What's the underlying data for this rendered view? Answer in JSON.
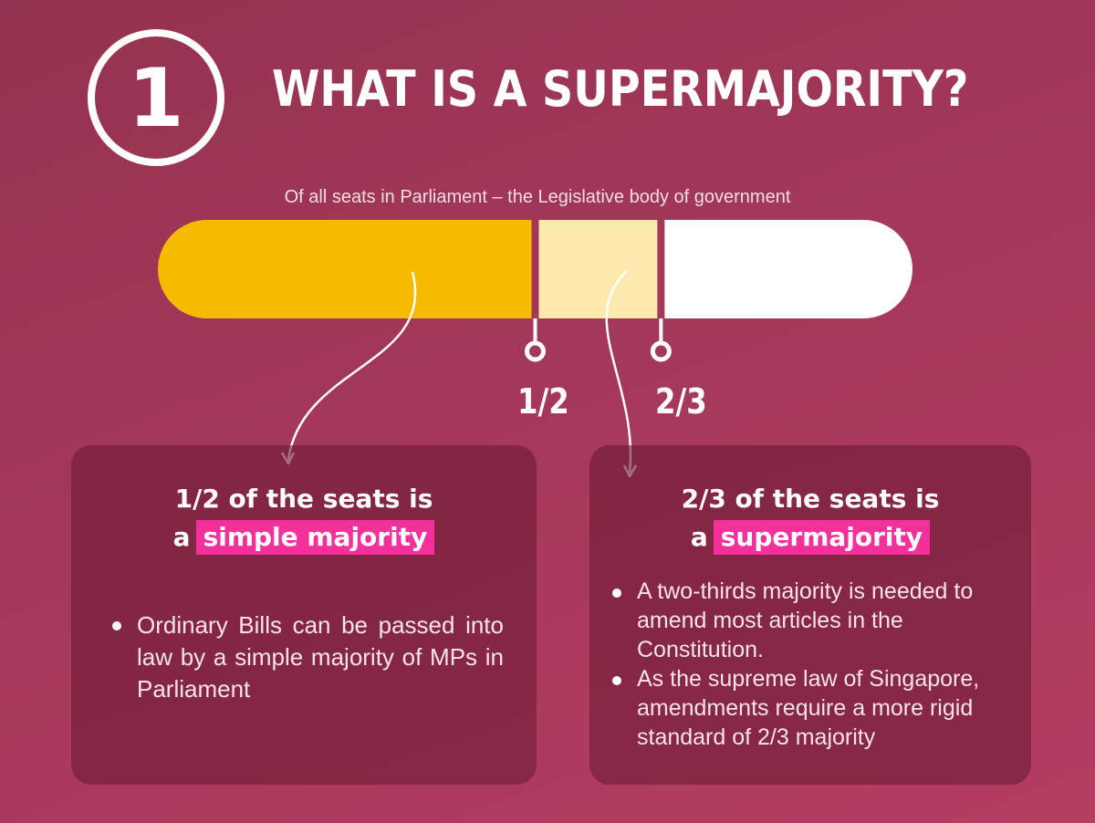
{
  "header": {
    "step_number": "1",
    "title": "WHAT IS A SUPERMAJORITY?"
  },
  "subtitle": "Of all seats in Parliament – the Legislative body of government",
  "bar": {
    "thresholds": [
      {
        "label": "1/2",
        "value": 0.5
      },
      {
        "label": "2/3",
        "value": 0.6667
      }
    ],
    "colors": {
      "simple_majority": "#f6bb00",
      "supermajority": "#fde8ad",
      "remainder": "#ffffff"
    }
  },
  "cards": {
    "simple": {
      "heading_line1": "1/2 of the seats is",
      "heading_prefix": "a",
      "highlight": "simple majority",
      "points": [
        "Ordinary Bills can be passed into law by a simple majority of MPs in Parliament"
      ]
    },
    "super": {
      "heading_line1": "2/3 of the seats is",
      "heading_prefix": "a",
      "highlight": "supermajority",
      "points": [
        "A two-thirds majority is needed to amend most articles in the Constitution.",
        "As the supreme law of Singapore, amendments require a more rigid standard of 2/3 majority"
      ]
    }
  },
  "accent_color": "#f4309a"
}
